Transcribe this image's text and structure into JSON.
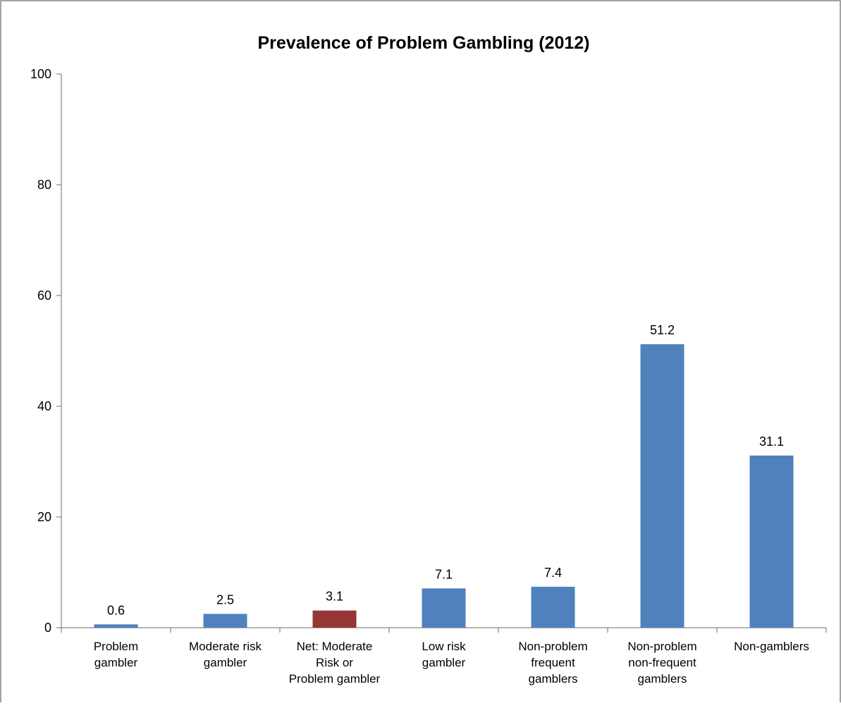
{
  "chart_data": {
    "type": "bar",
    "title": "Prevalence of Problem Gambling (2012)",
    "xlabel": "",
    "ylabel": "",
    "ylim": [
      0,
      100
    ],
    "yticks": [
      0,
      20,
      40,
      60,
      80,
      100
    ],
    "grid": false,
    "legend": "none",
    "categories": [
      [
        "Problem",
        "gambler"
      ],
      [
        "Moderate risk",
        "gambler"
      ],
      [
        "Net: Moderate",
        "Risk or",
        "Problem gambler"
      ],
      [
        "Low risk",
        "gambler"
      ],
      [
        "Non-problem",
        "frequent",
        "gamblers"
      ],
      [
        "Non-problem",
        "non-frequent",
        "gamblers"
      ],
      [
        "Non-gamblers"
      ]
    ],
    "values": [
      0.6,
      2.5,
      3.1,
      7.1,
      7.4,
      51.2,
      31.1
    ],
    "data_labels": [
      "0.6",
      "2.5",
      "3.1",
      "7.1",
      "7.4",
      "51.2",
      "31.1"
    ],
    "bar_colors": [
      "#4f81bd",
      "#4f81bd",
      "#953735",
      "#4f81bd",
      "#4f81bd",
      "#4f81bd",
      "#4f81bd"
    ],
    "colors": {
      "primary": "#4f81bd",
      "highlight": "#953735",
      "axis": "#868686",
      "border": "#868686"
    }
  }
}
